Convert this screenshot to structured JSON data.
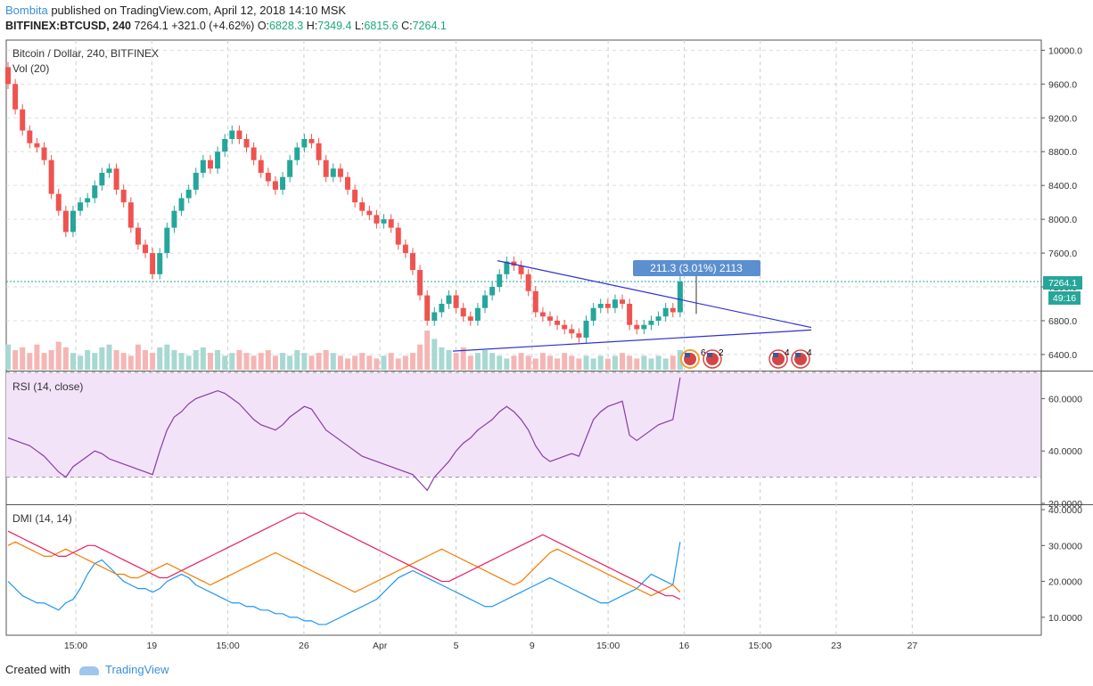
{
  "header": {
    "user": "Bombita",
    "published_text": "published on TradingView.com, April 12, 2018 14:10 MSK",
    "symbol_line": "BITFINEX:BTCUSD, 240",
    "last": "7264.1",
    "change": "+321.0 (+4.62%)",
    "o_label": "O:",
    "o": "6828.3",
    "h_label": "H:",
    "h": "7349.4",
    "l_label": "L:",
    "l": "6815.6",
    "c_label": "C:",
    "c": "7264.1"
  },
  "panes": {
    "main_title": "Bitcoin / Dollar, 240, BITFINEX",
    "vol_title": "Vol (20)",
    "rsi_title": "RSI (14, close)",
    "dmi_title": "DMI (14, 14)"
  },
  "badges": {
    "price": "7264.1",
    "countdown": "49:16",
    "measure": "211.3 (3.01%) 2113",
    "events": [
      "6",
      "2",
      "4",
      "4"
    ]
  },
  "footer": {
    "created_with": "Created with",
    "brand": "TradingView"
  },
  "colors": {
    "up": "#26a69a",
    "down": "#ef5350",
    "rsi": "#8b3aa6",
    "dmi_plus": "#2196f3",
    "dmi_minus": "#f57c00",
    "adx": "#e91e63",
    "trend": "#2f2fd4"
  },
  "chart_data": [
    {
      "type": "candlestick",
      "title": "Bitcoin / Dollar, 240, BITFINEX",
      "y_ticks": [
        10000,
        9600,
        9200,
        8800,
        8400,
        8000,
        7600,
        7200,
        6800,
        6400
      ],
      "y_tick_labels": [
        "10000.0",
        "9600.0",
        "9200.0",
        "8800.0",
        "8400.0",
        "8000.0",
        "7600.0",
        "7200.0",
        "6800.0",
        "6400.0"
      ],
      "ylim": [
        6220,
        10120
      ],
      "x_tick_labels": [
        "15:00",
        "19",
        "15:00",
        "26",
        "Apr",
        "5",
        "9",
        "15:00",
        "16",
        "15:00",
        "23",
        "27"
      ],
      "grid": true,
      "close_series": [
        9600,
        9300,
        9050,
        8900,
        8850,
        8700,
        8300,
        8100,
        7850,
        8100,
        8200,
        8250,
        8400,
        8550,
        8600,
        8350,
        8200,
        7900,
        7700,
        7600,
        7350,
        7600,
        7900,
        8100,
        8250,
        8350,
        8550,
        8700,
        8600,
        8800,
        8950,
        9050,
        8950,
        8850,
        8700,
        8550,
        8450,
        8350,
        8500,
        8700,
        8850,
        8950,
        8900,
        8700,
        8500,
        8600,
        8500,
        8350,
        8200,
        8100,
        8050,
        7950,
        8000,
        7900,
        7700,
        7600,
        7400,
        7100,
        6800,
        6900,
        7000,
        7100,
        6950,
        6850,
        6800,
        6950,
        7100,
        7200,
        7350,
        7500,
        7450,
        7350,
        7150,
        6900,
        6850,
        6800,
        6750,
        6700,
        6650,
        6600,
        6800,
        6950,
        7000,
        6950,
        7050,
        7000,
        6750,
        6700,
        6750,
        6800,
        6850,
        6950,
        6900,
        7264.1
      ],
      "trendline_upper": [
        [
          7.6,
          7510
        ],
        [
          17.8,
          6720
        ]
      ],
      "trendline_lower": [
        [
          10.0,
          6440
        ],
        [
          17.8,
          6690
        ]
      ],
      "last_price": 7264.1
    },
    {
      "type": "bar",
      "title": "Vol (20)",
      "values": [
        9,
        7,
        8,
        6,
        9,
        6,
        7,
        10,
        8,
        6,
        5,
        7,
        6,
        8,
        9,
        7,
        6,
        5,
        9,
        7,
        6,
        8,
        9,
        7,
        6,
        5,
        7,
        8,
        6,
        7,
        5,
        6,
        7,
        6,
        5,
        6,
        7,
        5,
        6,
        5,
        7,
        6,
        5,
        6,
        7,
        6,
        5,
        4,
        5,
        6,
        5,
        4,
        5,
        6,
        4,
        5,
        6,
        9,
        14,
        11,
        8,
        7,
        6,
        8,
        5,
        6,
        7,
        6,
        5,
        4,
        5,
        6,
        5,
        4,
        6,
        5,
        4,
        6,
        5,
        4,
        5,
        4,
        5,
        4,
        5,
        6,
        5,
        4,
        5,
        4,
        5,
        4,
        5,
        7
      ]
    },
    {
      "type": "line",
      "title": "RSI (14, close)",
      "y_ticks": [
        60,
        40,
        20
      ],
      "y_tick_labels": [
        "60.0000",
        "40.0000",
        "20.0000"
      ],
      "ylim": [
        20,
        70
      ],
      "band": [
        30,
        70
      ],
      "values": [
        45,
        44,
        43,
        42,
        40,
        38,
        35,
        32,
        30,
        34,
        36,
        38,
        40,
        39,
        37,
        36,
        35,
        34,
        33,
        32,
        31,
        40,
        48,
        53,
        55,
        58,
        60,
        61,
        62,
        63,
        62,
        60,
        58,
        55,
        52,
        50,
        49,
        48,
        50,
        53,
        55,
        57,
        56,
        52,
        48,
        46,
        44,
        42,
        40,
        38,
        37,
        36,
        35,
        34,
        33,
        32,
        31,
        28,
        25,
        30,
        33,
        36,
        40,
        43,
        45,
        48,
        50,
        52,
        55,
        57,
        55,
        52,
        48,
        42,
        38,
        36,
        37,
        38,
        39,
        38,
        45,
        52,
        55,
        57,
        58,
        59,
        46,
        44,
        46,
        48,
        50,
        51,
        52,
        68
      ]
    },
    {
      "type": "line",
      "title": "DMI (14, 14)",
      "y_ticks": [
        40,
        30,
        20,
        10
      ],
      "y_tick_labels": [
        "40.0000",
        "30.0000",
        "20.0000",
        "10.0000"
      ],
      "ylim": [
        5,
        41
      ],
      "series": [
        {
          "values": [
            20,
            18,
            16,
            15,
            14,
            14,
            13,
            12,
            14,
            15,
            18,
            22,
            25,
            26,
            24,
            22,
            20,
            19,
            18,
            18,
            17,
            18,
            20,
            21,
            22,
            21,
            19,
            18,
            17,
            16,
            15,
            14,
            14,
            13,
            13,
            12,
            12,
            11,
            11,
            10,
            10,
            9,
            9,
            8,
            8,
            9,
            10,
            11,
            12,
            13,
            14,
            15,
            17,
            19,
            21,
            22,
            23,
            22,
            21,
            20,
            19,
            18,
            17,
            16,
            15,
            14,
            13,
            13,
            14,
            15,
            16,
            17,
            18,
            19,
            20,
            21,
            20,
            19,
            18,
            17,
            16,
            15,
            14,
            14,
            15,
            16,
            17,
            18,
            20,
            22,
            21,
            20,
            19,
            31
          ]
        },
        {
          "values": [
            30,
            31,
            30,
            29,
            28,
            27,
            27,
            28,
            29,
            28,
            27,
            26,
            25,
            24,
            23,
            22,
            22,
            21,
            21,
            22,
            23,
            24,
            25,
            24,
            23,
            22,
            21,
            20,
            19,
            20,
            21,
            22,
            23,
            24,
            25,
            26,
            27,
            28,
            27,
            26,
            25,
            24,
            23,
            22,
            21,
            20,
            19,
            18,
            17,
            18,
            19,
            20,
            21,
            22,
            23,
            24,
            25,
            26,
            27,
            28,
            29,
            28,
            27,
            26,
            25,
            24,
            23,
            22,
            21,
            20,
            19,
            20,
            22,
            24,
            26,
            28,
            29,
            28,
            27,
            26,
            25,
            24,
            23,
            22,
            21,
            20,
            19,
            18,
            17,
            16,
            17,
            18,
            19,
            17
          ]
        },
        {
          "values": [
            34,
            33,
            32,
            31,
            30,
            29,
            28,
            27,
            27,
            28,
            29,
            30,
            30,
            29,
            28,
            27,
            26,
            25,
            24,
            23,
            22,
            21,
            21,
            22,
            23,
            24,
            25,
            26,
            27,
            28,
            29,
            30,
            31,
            32,
            33,
            34,
            35,
            36,
            37,
            38,
            39,
            39,
            38,
            37,
            36,
            35,
            34,
            33,
            32,
            31,
            30,
            29,
            28,
            27,
            26,
            25,
            24,
            23,
            22,
            21,
            20,
            20,
            21,
            22,
            23,
            24,
            25,
            26,
            27,
            28,
            29,
            30,
            31,
            32,
            33,
            32,
            31,
            30,
            29,
            28,
            27,
            26,
            25,
            24,
            23,
            22,
            21,
            20,
            19,
            18,
            17,
            16,
            16,
            15
          ]
        }
      ]
    }
  ]
}
